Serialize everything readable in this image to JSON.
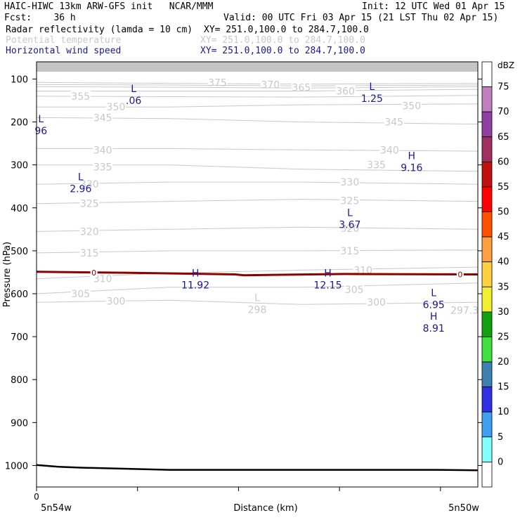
{
  "header": {
    "line1_left": "HAIC-HIWC 13km ARW-GFS init   NCAR/MMM",
    "line1_right": "Init: 12 UTC Wed 01 Apr 15",
    "line2_left": "Fcst:    36 h",
    "line2_right": "Valid: 00 UTC Fri 03 Apr 15 (21 LST Thu 02 Apr 15)",
    "fields": [
      {
        "name": "Radar reflectivity (lamda = 10 cm)",
        "xy": "XY= 251.0,100.0 to 284.7,100.0",
        "color": "#000000"
      },
      {
        "name": "Potential temperature",
        "xy": "XY= 251.0,100.0 to 284.7,100.0",
        "color": "#c8c8c8"
      },
      {
        "name": "Horizontal wind speed",
        "xy": "XY= 251.0,100.0 to 284.7,100.0",
        "color": "#1a1a8c"
      }
    ]
  },
  "chart_data": {
    "type": "cross-section",
    "ylabel": "Pressure (hPa)",
    "xlabel": "Distance (km)",
    "x_tick_labels": [
      "0"
    ],
    "x_left_label": "5n54w",
    "x_right_label": "5n50w",
    "x_range": [
      0,
      1
    ],
    "y_range": [
      1050,
      60
    ],
    "y_ticks": [
      100,
      200,
      300,
      400,
      500,
      600,
      700,
      800,
      900,
      1000
    ],
    "theta_contours": [
      {
        "value": "375",
        "x": [
          0.0,
          0.3,
          0.6,
          1.0
        ],
        "y": [
          108,
          110,
          112,
          110
        ],
        "label_at": [
          [
            0.41,
            108
          ]
        ]
      },
      {
        "value": "370",
        "x": [
          0.0,
          0.3,
          0.6,
          1.0
        ],
        "y": [
          113,
          114,
          116,
          114
        ],
        "label_at": [
          [
            0.53,
            113
          ]
        ]
      },
      {
        "value": "365",
        "x": [
          0.0,
          0.3,
          0.6,
          1.0
        ],
        "y": [
          118,
          119,
          121,
          118
        ],
        "label_at": [
          [
            0.6,
            120
          ]
        ]
      },
      {
        "value": "360",
        "x": [
          0.0,
          0.3,
          0.6,
          1.0
        ],
        "y": [
          128,
          128,
          128,
          124
        ],
        "label_at": [
          [
            0.7,
            128
          ]
        ]
      },
      {
        "value": "355",
        "x": [
          0.0,
          0.3,
          0.6,
          1.0
        ],
        "y": [
          140,
          141,
          142,
          138
        ],
        "label_at": [
          [
            0.1,
            140
          ]
        ]
      },
      {
        "value": "350",
        "x": [
          0.0,
          0.3,
          0.6,
          1.0
        ],
        "y": [
          165,
          165,
          160,
          158
        ],
        "label_at": [
          [
            0.18,
            165
          ],
          [
            0.85,
            162
          ]
        ]
      },
      {
        "value": "345",
        "x": [
          0.0,
          0.3,
          0.6,
          1.0
        ],
        "y": [
          190,
          192,
          200,
          205
        ],
        "label_at": [
          [
            0.15,
            190
          ],
          [
            0.81,
            200
          ]
        ]
      },
      {
        "value": "340",
        "x": [
          0.0,
          0.3,
          0.6,
          1.0
        ],
        "y": [
          262,
          262,
          265,
          268
        ],
        "label_at": [
          [
            0.15,
            265
          ],
          [
            0.8,
            265
          ]
        ]
      },
      {
        "value": "335",
        "x": [
          0.0,
          0.3,
          0.6,
          1.0
        ],
        "y": [
          300,
          300,
          310,
          315
        ],
        "label_at": [
          [
            0.15,
            305
          ],
          [
            0.77,
            300
          ]
        ]
      },
      {
        "value": "330",
        "x": [
          0.0,
          0.3,
          0.6,
          1.0
        ],
        "y": [
          345,
          340,
          340,
          345
        ],
        "label_at": [
          [
            0.12,
            345
          ],
          [
            0.71,
            340
          ]
        ]
      },
      {
        "value": "325",
        "x": [
          0.0,
          0.3,
          0.6,
          1.0
        ],
        "y": [
          390,
          385,
          380,
          385
        ],
        "label_at": [
          [
            0.12,
            390
          ],
          [
            0.71,
            383
          ]
        ]
      },
      {
        "value": "320",
        "x": [
          0.0,
          0.3,
          0.6,
          1.0
        ],
        "y": [
          455,
          450,
          445,
          450
        ],
        "label_at": [
          [
            0.12,
            455
          ],
          [
            0.71,
            448
          ]
        ]
      },
      {
        "value": "315",
        "x": [
          0.0,
          0.3,
          0.6,
          1.0
        ],
        "y": [
          505,
          500,
          500,
          498
        ],
        "label_at": [
          [
            0.12,
            505
          ],
          [
            0.71,
            500
          ]
        ]
      },
      {
        "value": "310",
        "x": [
          0.0,
          0.3,
          0.6,
          1.0
        ],
        "y": [
          565,
          552,
          545,
          538
        ],
        "label_at": [
          [
            0.15,
            565
          ],
          [
            0.74,
            545
          ]
        ]
      },
      {
        "value": "305",
        "x": [
          0.0,
          0.3,
          0.6,
          1.0
        ],
        "y": [
          600,
          585,
          585,
          575
        ],
        "label_at": [
          [
            0.1,
            600
          ],
          [
            0.72,
            590
          ]
        ]
      },
      {
        "value": "300",
        "x": [
          0.0,
          0.3,
          0.6,
          1.0
        ],
        "y": [
          620,
          615,
          625,
          620
        ],
        "label_at": [
          [
            0.18,
            617
          ],
          [
            0.77,
            620
          ]
        ]
      }
    ],
    "wind_extrema": [
      {
        "type": "L",
        "value": ".06",
        "x": 0.22,
        "y": 142
      },
      {
        "type": "L",
        "value": "1.25",
        "x": 0.76,
        "y": 137
      },
      {
        "type": "L",
        "value": "96",
        "x": 0.01,
        "y": 212
      },
      {
        "type": "H",
        "value": "9.16",
        "x": 0.85,
        "y": 298
      },
      {
        "type": "L",
        "value": "2.96",
        "x": 0.1,
        "y": 347
      },
      {
        "type": "L",
        "value": "3.67",
        "x": 0.71,
        "y": 431
      },
      {
        "type": "H",
        "value": "11.92",
        "x": 0.36,
        "y": 571
      },
      {
        "type": "H",
        "value": "12.15",
        "x": 0.66,
        "y": 571
      },
      {
        "type": "L",
        "value": "6.95",
        "x": 0.9,
        "y": 617
      },
      {
        "type": "H",
        "value": "8.91",
        "x": 0.9,
        "y": 672
      }
    ],
    "theta_extrema": [
      {
        "type": "L",
        "value": "298",
        "x": 0.5,
        "y": 629
      },
      {
        "type": "",
        "value": "297.3",
        "x": 0.97,
        "y": 630
      }
    ],
    "zero_label": "0",
    "legend_title": "dBZ",
    "legend_levels": [
      75,
      70,
      65,
      60,
      55,
      50,
      45,
      40,
      35,
      30,
      25,
      20,
      15,
      10,
      5,
      0
    ],
    "legend_colors": [
      "#ffffff",
      "#c080c0",
      "#9040a0",
      "#a03060",
      "#c01010",
      "#ff0000",
      "#ff5000",
      "#ffa040",
      "#ffd040",
      "#f0f030",
      "#10a010",
      "#40e040",
      "#4080b0",
      "#3030e0",
      "#40a0f0",
      "#80ffff",
      "#ffffff"
    ],
    "colors": {
      "theta": "#c8c8c8",
      "wind": "#1a1a8c",
      "zero": "#8b0000",
      "terrain": "#000000"
    }
  }
}
